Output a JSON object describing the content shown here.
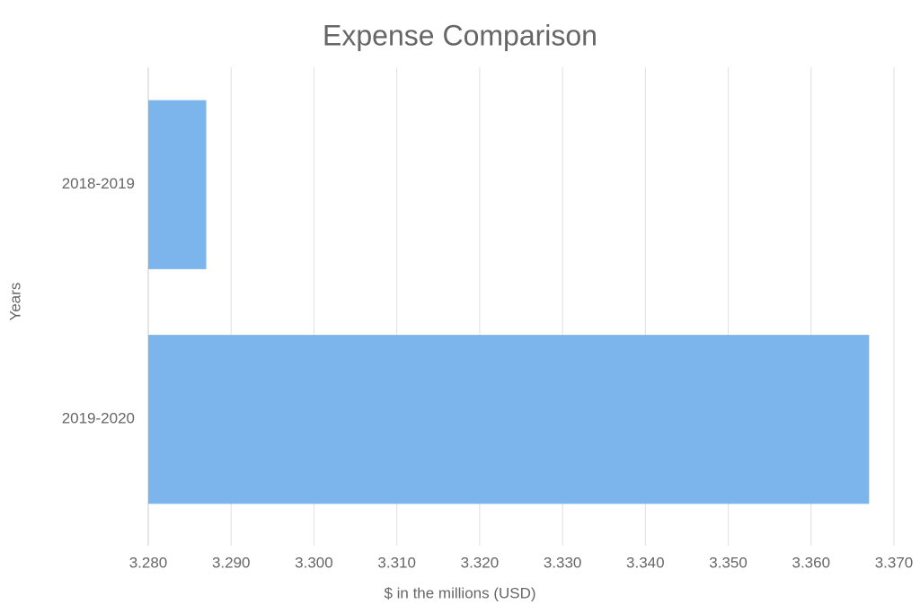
{
  "chart_data": {
    "type": "bar",
    "orientation": "horizontal",
    "title": "Expense Comparison",
    "x_label": "$ in the millions (USD)",
    "y_label": "Years",
    "categories": [
      "2018-2019",
      "2019-2020"
    ],
    "values": [
      3.287,
      3.367
    ],
    "color": "#7cb5ec",
    "xlim": [
      3.28,
      3.37
    ],
    "xticks": [
      {
        "value": 3.28,
        "label": "3.280"
      },
      {
        "value": 3.29,
        "label": "3.290"
      },
      {
        "value": 3.3,
        "label": "3.300"
      },
      {
        "value": 3.31,
        "label": "3.310"
      },
      {
        "value": 3.32,
        "label": "3.320"
      },
      {
        "value": 3.33,
        "label": "3.330"
      },
      {
        "value": 3.34,
        "label": "3.340"
      },
      {
        "value": 3.35,
        "label": "3.350"
      },
      {
        "value": 3.36,
        "label": "3.360"
      },
      {
        "value": 3.37,
        "label": "3.370"
      }
    ],
    "grid": true
  }
}
